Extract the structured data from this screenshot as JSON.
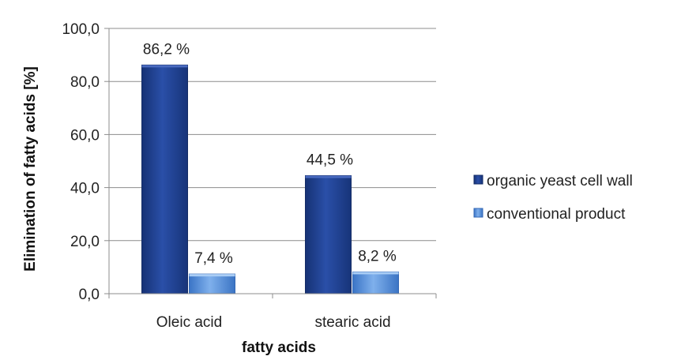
{
  "chart_data": {
    "type": "bar",
    "title": "",
    "xlabel": "fatty acids",
    "ylabel": "Elimination of fatty acids [%]",
    "categories": [
      "Oleic acid",
      "stearic acid"
    ],
    "series": [
      {
        "name": "organic yeast cell wall",
        "values": [
          86.2,
          44.5
        ],
        "labels": [
          "86,2 %",
          "44,5 %"
        ],
        "color": "#1f3f8f"
      },
      {
        "name": "conventional product",
        "values": [
          7.4,
          8.2
        ],
        "labels": [
          "7,4 %",
          "8,2 %"
        ],
        "color": "#4a86d8"
      }
    ],
    "ylim": [
      0,
      100
    ],
    "yticks": [
      "0,0",
      "20,0",
      "40,0",
      "60,0",
      "80,0",
      "100,0"
    ],
    "grid": true,
    "legend_position": "right"
  }
}
